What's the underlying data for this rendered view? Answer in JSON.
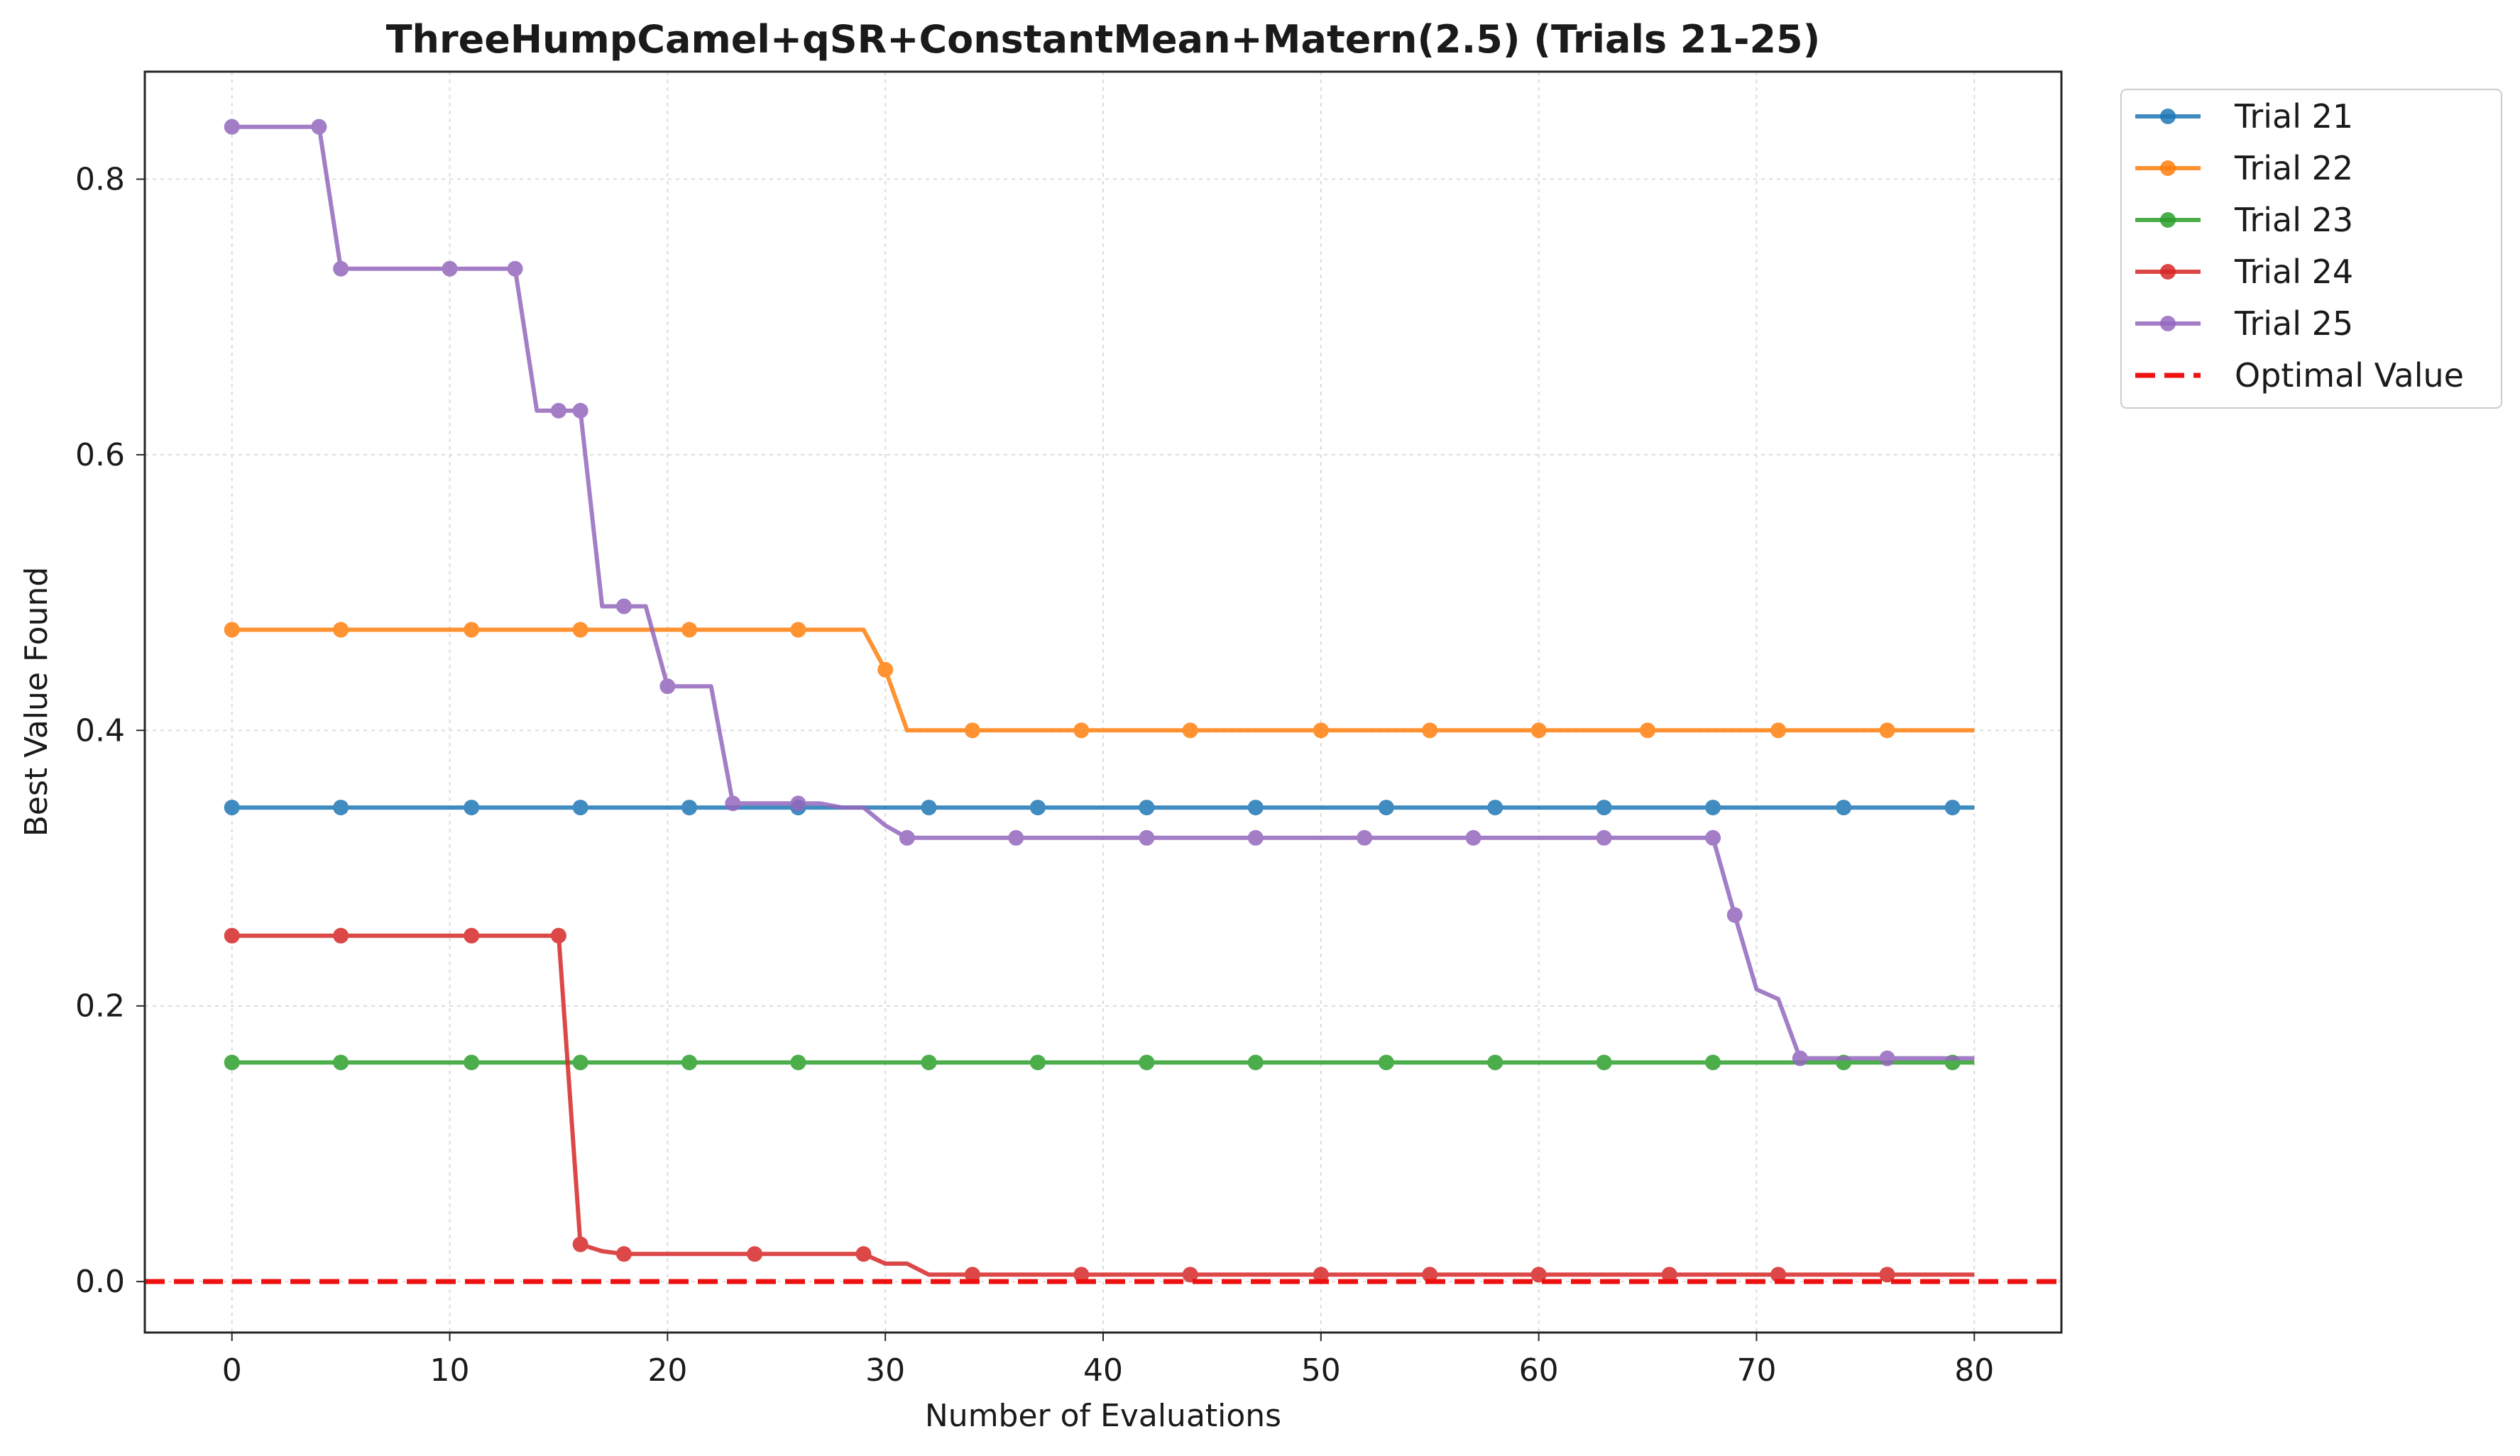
{
  "chart_data": {
    "type": "line",
    "title": "ThreeHumpCamel+qSR+ConstantMean+Matern(2.5) (Trials 21-25)",
    "xlabel": "Number of Evaluations",
    "ylabel": "Best Value Found",
    "xlim": [
      -4,
      84
    ],
    "ylim": [
      -0.037,
      0.878
    ],
    "xticks": [
      0,
      10,
      20,
      30,
      40,
      50,
      60,
      70,
      80
    ],
    "xtick_labels": [
      "0",
      "10",
      "20",
      "30",
      "40",
      "50",
      "60",
      "70",
      "80"
    ],
    "yticks": [
      0.0,
      0.2,
      0.4,
      0.6,
      0.8
    ],
    "ytick_labels": [
      "0.0",
      "0.2",
      "0.4",
      "0.6",
      "0.8"
    ],
    "grid": true,
    "legend_position": "outside-top-right",
    "series": [
      {
        "name": "Trial 21",
        "color": "#1f77b4",
        "x": [
          0,
          80
        ],
        "y": [
          0.344,
          0.344
        ],
        "marker_x": [
          0,
          5,
          11,
          16,
          21,
          26,
          32,
          37,
          42,
          47,
          53,
          58,
          63,
          68,
          74,
          79
        ],
        "marker_y": [
          0.344,
          0.344,
          0.344,
          0.344,
          0.344,
          0.344,
          0.344,
          0.344,
          0.344,
          0.344,
          0.344,
          0.344,
          0.344,
          0.344,
          0.344,
          0.344
        ]
      },
      {
        "name": "Trial 22",
        "color": "#ff7f0e",
        "x": [
          0,
          29,
          30,
          31,
          80
        ],
        "y": [
          0.473,
          0.473,
          0.444,
          0.4,
          0.4
        ],
        "marker_x": [
          0,
          5,
          11,
          16,
          21,
          26,
          30,
          34,
          39,
          44,
          50,
          55,
          60,
          65,
          71,
          76
        ],
        "marker_y": [
          0.473,
          0.473,
          0.473,
          0.473,
          0.473,
          0.473,
          0.444,
          0.4,
          0.4,
          0.4,
          0.4,
          0.4,
          0.4,
          0.4,
          0.4,
          0.4
        ]
      },
      {
        "name": "Trial 23",
        "color": "#2ca02c",
        "x": [
          0,
          80
        ],
        "y": [
          0.159,
          0.159
        ],
        "marker_x": [
          0,
          5,
          11,
          16,
          21,
          26,
          32,
          37,
          42,
          47,
          53,
          58,
          63,
          68,
          74,
          79
        ],
        "marker_y": [
          0.159,
          0.159,
          0.159,
          0.159,
          0.159,
          0.159,
          0.159,
          0.159,
          0.159,
          0.159,
          0.159,
          0.159,
          0.159,
          0.159,
          0.159,
          0.159
        ]
      },
      {
        "name": "Trial 24",
        "color": "#d62728",
        "x": [
          0,
          15,
          16,
          17,
          18,
          29,
          30,
          31,
          32,
          80
        ],
        "y": [
          0.251,
          0.251,
          0.027,
          0.022,
          0.02,
          0.02,
          0.013,
          0.013,
          0.005,
          0.005
        ],
        "marker_x": [
          0,
          5,
          11,
          15,
          16,
          18,
          24,
          29,
          34,
          39,
          44,
          50,
          55,
          60,
          66,
          71,
          76
        ],
        "marker_y": [
          0.251,
          0.251,
          0.251,
          0.251,
          0.027,
          0.02,
          0.02,
          0.02,
          0.005,
          0.005,
          0.005,
          0.005,
          0.005,
          0.005,
          0.005,
          0.005,
          0.005
        ]
      },
      {
        "name": "Trial 25",
        "color": "#9467bd",
        "x": [
          0,
          4,
          5,
          13,
          14,
          16,
          17,
          19,
          20,
          22,
          23,
          27,
          28,
          29,
          30,
          31,
          68,
          69,
          70,
          71,
          72,
          80
        ],
        "y": [
          0.838,
          0.838,
          0.735,
          0.735,
          0.632,
          0.632,
          0.49,
          0.49,
          0.432,
          0.432,
          0.347,
          0.347,
          0.344,
          0.344,
          0.331,
          0.322,
          0.322,
          0.266,
          0.212,
          0.205,
          0.162,
          0.162
        ],
        "marker_x": [
          0,
          4,
          5,
          10,
          13,
          15,
          16,
          18,
          20,
          23,
          26,
          31,
          36,
          42,
          47,
          52,
          57,
          63,
          68,
          69,
          72,
          76
        ],
        "marker_y": [
          0.838,
          0.838,
          0.735,
          0.735,
          0.735,
          0.632,
          0.632,
          0.49,
          0.432,
          0.347,
          0.347,
          0.322,
          0.322,
          0.322,
          0.322,
          0.322,
          0.322,
          0.322,
          0.322,
          0.266,
          0.162,
          0.162
        ]
      }
    ],
    "reference_line": {
      "name": "Optimal Value",
      "y": 0.0,
      "color": "#ee1111",
      "style": "dashed"
    }
  }
}
